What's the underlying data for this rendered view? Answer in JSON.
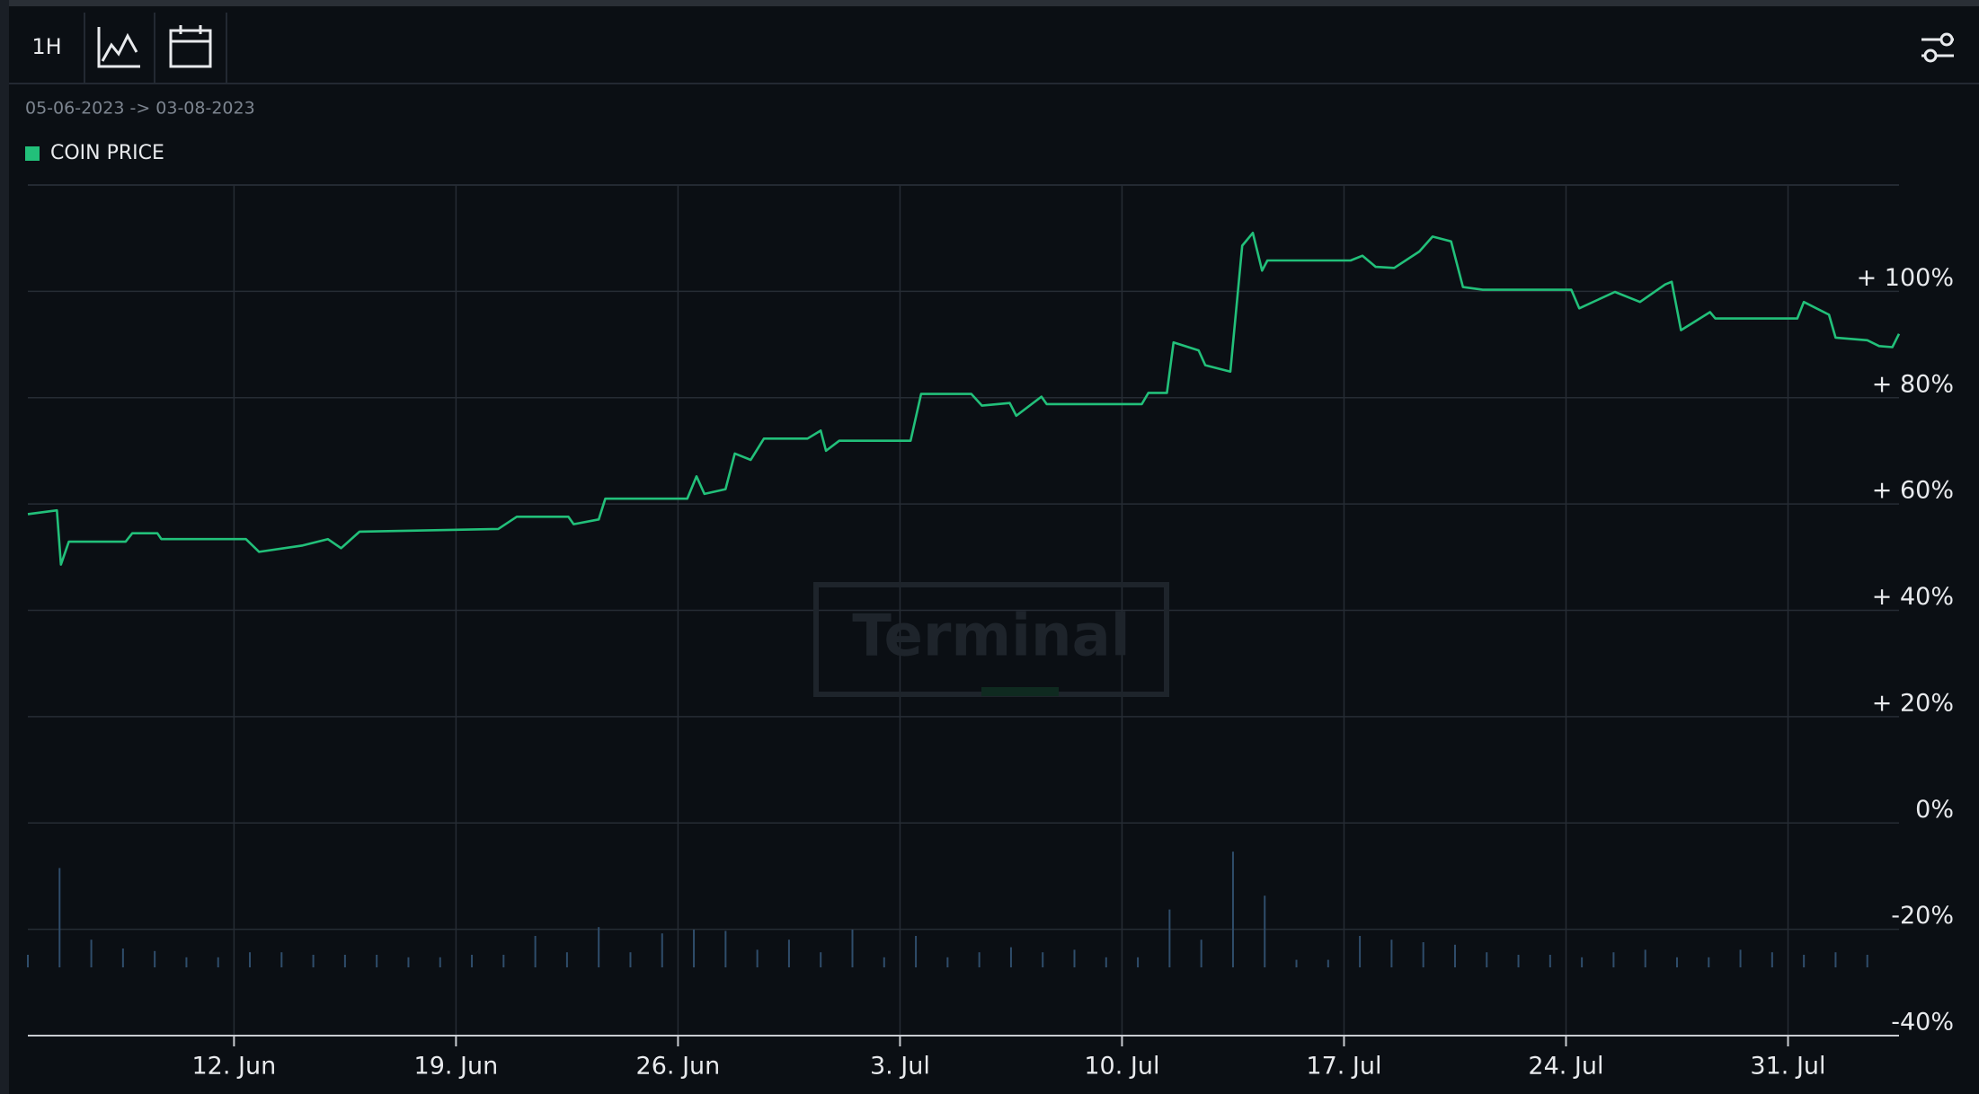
{
  "toolbar": {
    "interval": "1H"
  },
  "chart_data": {
    "type": "line",
    "date_range": "05-06-2023 -> 03-08-2023",
    "watermark": "Terminal",
    "grid": true,
    "xlim": [
      "2023-06-05T12:00",
      "2023-08-03T12:00"
    ],
    "xticks": [
      {
        "value": "2023-06-12T00:00",
        "label": "12. Jun"
      },
      {
        "value": "2023-06-19T00:00",
        "label": "19. Jun"
      },
      {
        "value": "2023-06-26T00:00",
        "label": "26. Jun"
      },
      {
        "value": "2023-07-03T00:00",
        "label": "3. Jul"
      },
      {
        "value": "2023-07-10T00:00",
        "label": "10. Jul"
      },
      {
        "value": "2023-07-17T00:00",
        "label": "17. Jul"
      },
      {
        "value": "2023-07-24T00:00",
        "label": "24. Jul"
      },
      {
        "value": "2023-07-31T00:00",
        "label": "31. Jul"
      }
    ],
    "ylim": [
      -40,
      120
    ],
    "yticks": [
      {
        "value": -40,
        "label": "-40%"
      },
      {
        "value": -20,
        "label": "-20%"
      },
      {
        "value": 0,
        "label": "0%"
      },
      {
        "value": 20,
        "label": "+ 20%"
      },
      {
        "value": 40,
        "label": "+ 40%"
      },
      {
        "value": 60,
        "label": "+ 60%"
      },
      {
        "value": 80,
        "label": "+ 80%"
      },
      {
        "value": 100,
        "label": "+ 100%"
      }
    ],
    "x": [
      "2023-06-05T12:00",
      "2023-06-06T10:00",
      "2023-06-06T13:00",
      "2023-06-06T19:00",
      "2023-06-08T14:00",
      "2023-06-08T19:00",
      "2023-06-09T14:00",
      "2023-06-09T17:00",
      "2023-06-12T09:00",
      "2023-06-12T19:00",
      "2023-06-14T04:00",
      "2023-06-14T23:00",
      "2023-06-15T09:00",
      "2023-06-15T23:00",
      "2023-06-20T08:00",
      "2023-06-20T22:00",
      "2023-06-22T13:00",
      "2023-06-22T17:00",
      "2023-06-23T12:00",
      "2023-06-23T17:00",
      "2023-06-26T07:00",
      "2023-06-26T14:00",
      "2023-06-26T20:00",
      "2023-06-27T12:00",
      "2023-06-27T19:00",
      "2023-06-28T07:00",
      "2023-06-28T17:00",
      "2023-06-30T02:00",
      "2023-06-30T12:00",
      "2023-06-30T16:00",
      "2023-07-01T02:00",
      "2023-07-03T08:00",
      "2023-07-03T16:00",
      "2023-07-05T06:00",
      "2023-07-05T14:00",
      "2023-07-06T11:00",
      "2023-07-06T16:00",
      "2023-07-07T11:00",
      "2023-07-07T15:00",
      "2023-07-10T15:00",
      "2023-07-10T20:00",
      "2023-07-11T10:00",
      "2023-07-11T15:00",
      "2023-07-12T10:00",
      "2023-07-12T15:00",
      "2023-07-13T10:00",
      "2023-07-13T19:00",
      "2023-07-14T03:00",
      "2023-07-14T10:00",
      "2023-07-14T14:00",
      "2023-07-17T05:00",
      "2023-07-17T14:00",
      "2023-07-18T00:00",
      "2023-07-18T14:00",
      "2023-07-19T09:00",
      "2023-07-19T19:00",
      "2023-07-20T09:00",
      "2023-07-20T18:00",
      "2023-07-21T09:00",
      "2023-07-24T04:00",
      "2023-07-24T10:00",
      "2023-07-25T13:00",
      "2023-07-26T08:00",
      "2023-07-27T03:00",
      "2023-07-27T08:00",
      "2023-07-27T15:00",
      "2023-07-28T13:00",
      "2023-07-28T17:00",
      "2023-07-31T07:00",
      "2023-07-31T12:00",
      "2023-08-01T07:00",
      "2023-08-01T12:00",
      "2023-08-02T12:00",
      "2023-08-02T21:00",
      "2023-08-03T07:00",
      "2023-08-03T12:00"
    ],
    "series": [
      {
        "name": "COIN PRICE",
        "color": "#22c07a",
        "values": [
          58.1,
          58.8,
          48.6,
          52.9,
          52.9,
          54.5,
          54.5,
          53.4,
          53.4,
          51.0,
          52.2,
          53.4,
          51.7,
          54.8,
          55.3,
          57.6,
          57.6,
          56.2,
          57.1,
          61.0,
          61.0,
          65.2,
          61.9,
          62.8,
          69.5,
          68.3,
          72.3,
          72.3,
          73.8,
          70.0,
          71.9,
          71.9,
          80.7,
          80.7,
          78.5,
          79.0,
          76.6,
          80.2,
          78.8,
          78.8,
          80.9,
          80.9,
          90.4,
          88.9,
          86.1,
          84.9,
          108.6,
          111.0,
          103.9,
          105.8,
          105.8,
          106.7,
          104.6,
          104.4,
          107.5,
          110.3,
          109.4,
          100.8,
          100.3,
          100.3,
          96.8,
          99.9,
          98.0,
          101.3,
          101.8,
          92.7,
          96.1,
          94.9,
          94.9,
          98.0,
          95.6,
          91.3,
          90.8,
          89.7,
          89.5,
          92.0
        ]
      }
    ],
    "legend": "top-left",
    "volume": {
      "color": "#2f4d6b",
      "vlim": [
        0,
        100
      ],
      "x": [
        "2023-06-05T12:00",
        "2023-06-06T12:00",
        "2023-06-07T12:00",
        "2023-06-08T12:00",
        "2023-06-09T12:00",
        "2023-06-10T12:00",
        "2023-06-11T12:00",
        "2023-06-12T12:00",
        "2023-06-13T12:00",
        "2023-06-14T12:00",
        "2023-06-15T12:00",
        "2023-06-16T12:00",
        "2023-06-17T12:00",
        "2023-06-18T12:00",
        "2023-06-19T12:00",
        "2023-06-20T12:00",
        "2023-06-21T12:00",
        "2023-06-22T12:00",
        "2023-06-23T12:00",
        "2023-06-24T12:00",
        "2023-06-25T12:00",
        "2023-06-26T12:00",
        "2023-06-27T12:00",
        "2023-06-28T12:00",
        "2023-06-29T12:00",
        "2023-06-30T12:00",
        "2023-07-01T12:00",
        "2023-07-02T12:00",
        "2023-07-03T12:00",
        "2023-07-04T12:00",
        "2023-07-05T12:00",
        "2023-07-06T12:00",
        "2023-07-07T12:00",
        "2023-07-08T12:00",
        "2023-07-09T12:00",
        "2023-07-10T12:00",
        "2023-07-11T12:00",
        "2023-07-12T12:00",
        "2023-07-13T12:00",
        "2023-07-14T12:00",
        "2023-07-15T12:00",
        "2023-07-16T12:00",
        "2023-07-17T12:00",
        "2023-07-18T12:00",
        "2023-07-19T12:00",
        "2023-07-20T12:00",
        "2023-07-21T12:00",
        "2023-07-22T12:00",
        "2023-07-23T12:00",
        "2023-07-24T12:00",
        "2023-07-25T12:00",
        "2023-07-26T12:00",
        "2023-07-27T12:00",
        "2023-07-28T12:00",
        "2023-07-29T12:00",
        "2023-07-30T12:00",
        "2023-07-31T12:00",
        "2023-08-01T12:00",
        "2023-08-02T12:00"
      ],
      "values": [
        10,
        79,
        22,
        15,
        13,
        8,
        8,
        12,
        12,
        10,
        10,
        10,
        8,
        8,
        10,
        10,
        25,
        12,
        32,
        12,
        27,
        30,
        29,
        14,
        22,
        12,
        30,
        8,
        25,
        8,
        12,
        16,
        12,
        14,
        8,
        8,
        46,
        22,
        92,
        57,
        6,
        6,
        25,
        22,
        20,
        18,
        12,
        10,
        10,
        8,
        12,
        14,
        8,
        8,
        14,
        12,
        10,
        12,
        10
      ]
    }
  }
}
